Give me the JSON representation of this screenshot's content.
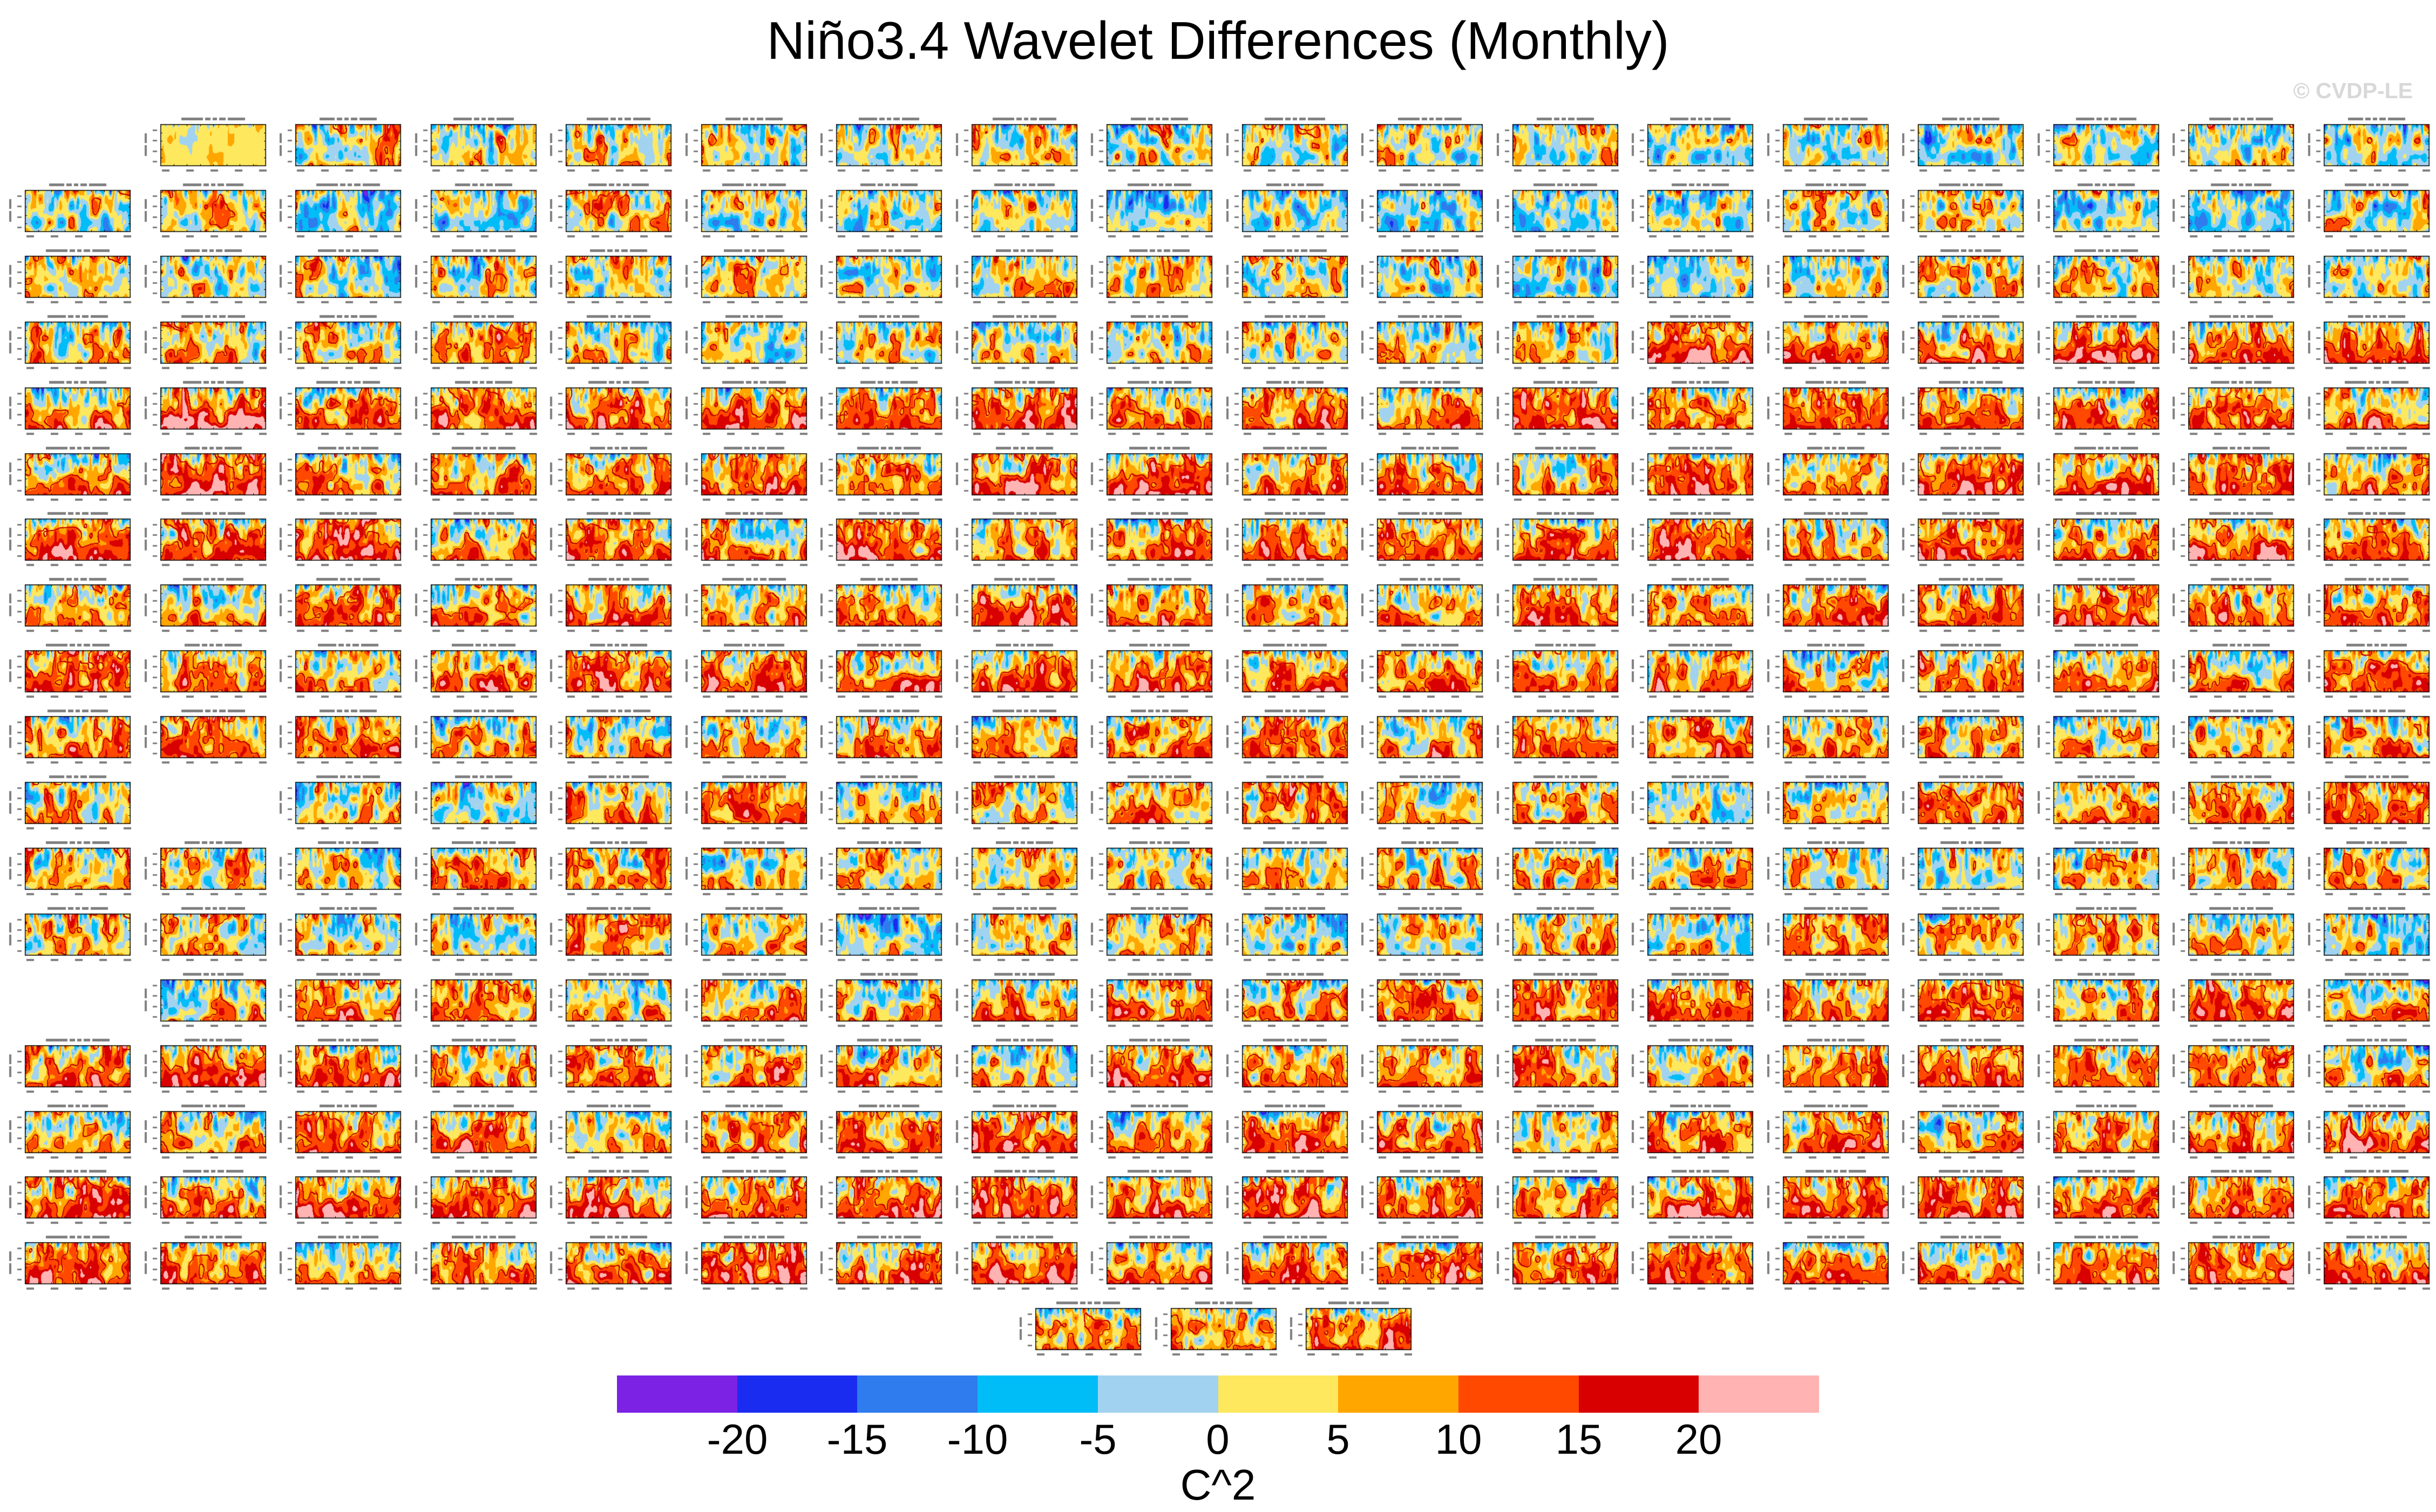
{
  "chart_data": {
    "type": "heatmap",
    "title": "Niño3.4 Wavelet Differences (Monthly)",
    "panels_per_row": [
      17,
      18,
      18,
      18,
      18,
      18,
      18,
      18,
      18,
      18,
      17,
      18,
      18,
      17,
      18,
      18,
      18,
      18,
      3
    ],
    "colorbar": {
      "label": "C^2",
      "ticks": [
        "-20",
        "-15",
        "-10",
        "-5",
        "0",
        "5",
        "10",
        "15",
        "20"
      ],
      "levels": [
        -20,
        -15,
        -10,
        -5,
        0,
        5,
        10,
        15,
        20
      ],
      "colors": [
        "#7b22e4",
        "#1a2cf0",
        "#2f7cee",
        "#00bdf7",
        "#a1d3f0",
        "#fde85e",
        "#ffa600",
        "#ff4800",
        "#d80000",
        "#ffb3b3"
      ],
      "contour_color": "#c40000"
    }
  },
  "figure": {
    "watermark": "© CVDP-LE"
  }
}
